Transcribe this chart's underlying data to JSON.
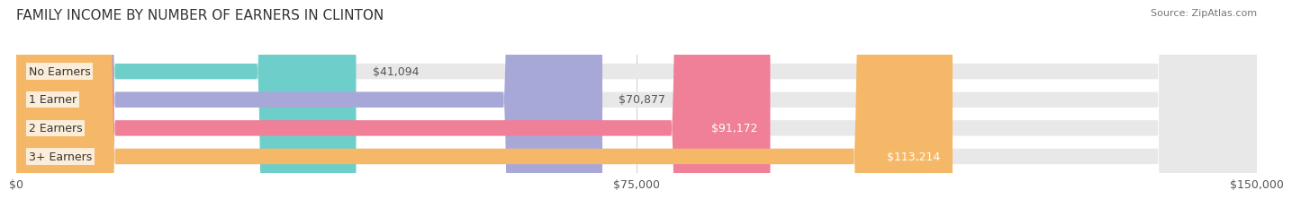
{
  "title": "FAMILY INCOME BY NUMBER OF EARNERS IN CLINTON",
  "source": "Source: ZipAtlas.com",
  "categories": [
    "No Earners",
    "1 Earner",
    "2 Earners",
    "3+ Earners"
  ],
  "values": [
    41094,
    70877,
    91172,
    113214
  ],
  "labels": [
    "$41,094",
    "$70,877",
    "$91,172",
    "$113,214"
  ],
  "bar_colors": [
    "#6ecfca",
    "#a8a8d8",
    "#f08098",
    "#f5b868"
  ],
  "bar_bg_color": "#e8e8e8",
  "max_value": 150000,
  "xtick_values": [
    0,
    75000,
    150000
  ],
  "xtick_labels": [
    "$0",
    "$75,000",
    "$150,000"
  ],
  "title_fontsize": 11,
  "label_fontsize": 9,
  "source_fontsize": 8,
  "background_color": "#ffffff",
  "bar_height": 0.55
}
